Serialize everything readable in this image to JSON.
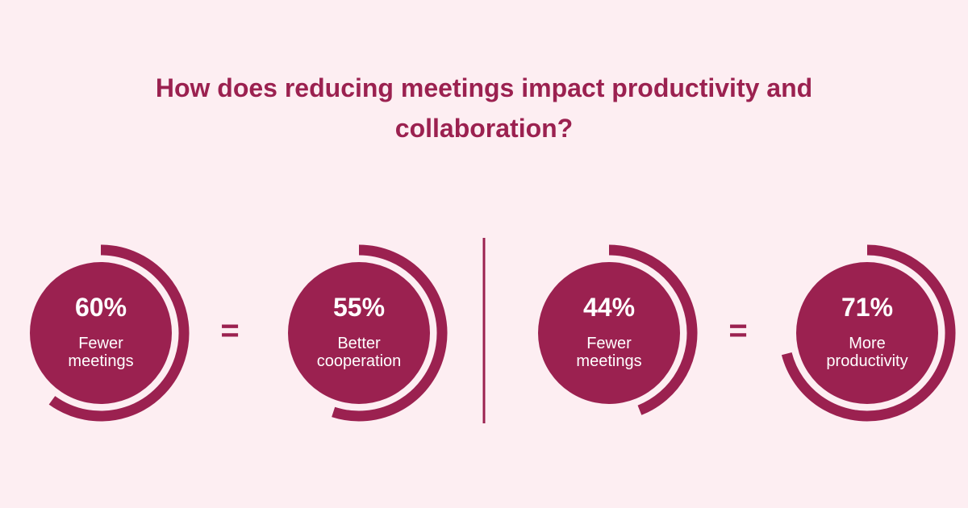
{
  "title": "How does reducing meetings impact productivity and collaboration?",
  "operators": [
    "=",
    "="
  ],
  "chart_data": [
    {
      "type": "radial",
      "categories": [
        "Fewer meetings"
      ],
      "values": [
        60
      ],
      "value_labels": [
        "60%"
      ],
      "ylim": [
        0,
        100
      ],
      "color": "#9b2150"
    },
    {
      "type": "radial",
      "categories": [
        "Better cooperation"
      ],
      "values": [
        55
      ],
      "value_labels": [
        "55%"
      ],
      "ylim": [
        0,
        100
      ],
      "color": "#9b2150"
    },
    {
      "type": "radial",
      "categories": [
        "Fewer meetings"
      ],
      "values": [
        44
      ],
      "value_labels": [
        "44%"
      ],
      "ylim": [
        0,
        100
      ],
      "color": "#9b2150"
    },
    {
      "type": "radial",
      "categories": [
        "More productivity"
      ],
      "values": [
        71
      ],
      "value_labels": [
        "71%"
      ],
      "ylim": [
        0,
        100
      ],
      "color": "#9b2150"
    }
  ]
}
